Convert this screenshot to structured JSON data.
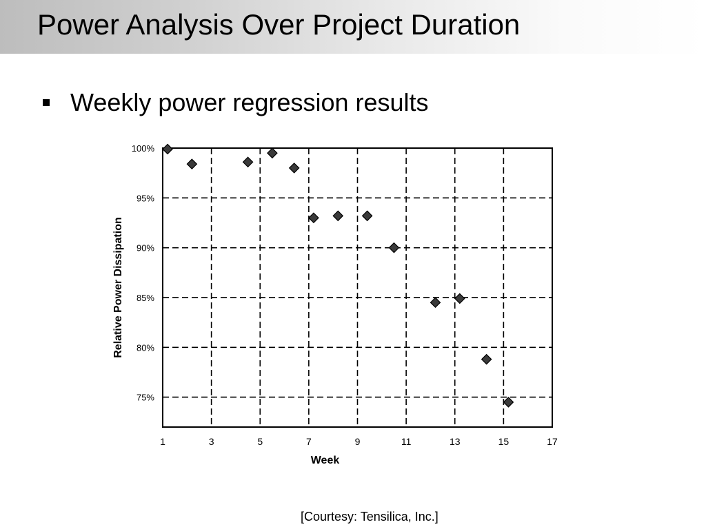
{
  "header": {
    "title": "Power Analysis Over Project Duration"
  },
  "bullets": [
    {
      "text": "Weekly power regression results"
    }
  ],
  "footer": {
    "courtesy": "[Courtesy: Tensilica, Inc.]"
  },
  "chart_data": {
    "type": "scatter",
    "title": "",
    "xlabel": "Week",
    "ylabel": "Relative Power Dissipation",
    "xlim": [
      1,
      17
    ],
    "ylim": [
      72,
      100
    ],
    "x_ticks": [
      1,
      3,
      5,
      7,
      9,
      11,
      13,
      15,
      17
    ],
    "y_ticks": [
      75,
      80,
      85,
      90,
      95,
      100
    ],
    "y_tick_labels": [
      "75%",
      "80%",
      "85%",
      "90%",
      "95%",
      "100%"
    ],
    "grid": "dashed",
    "marker": "diamond",
    "marker_color": "#3a3a3a",
    "series": [
      {
        "x": [
          1.2,
          2.2,
          4.5,
          5.5,
          6.4,
          7.2,
          8.2,
          9.4,
          10.5,
          12.2,
          13.2,
          14.3,
          15.2
        ],
        "y": [
          99.9,
          98.4,
          98.6,
          99.5,
          98.0,
          93.0,
          93.2,
          93.2,
          90.0,
          84.5,
          84.9,
          78.8,
          74.5
        ]
      }
    ]
  }
}
